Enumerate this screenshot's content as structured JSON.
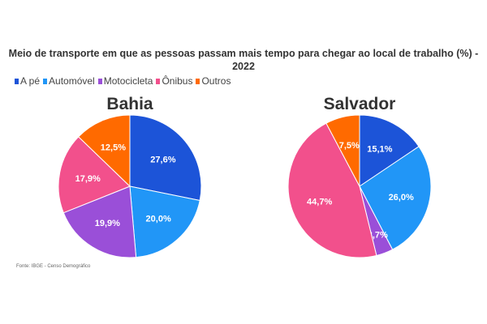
{
  "chart_data": {
    "type": "pie",
    "title": "Meio de transporte em que as pessoas passam mais tempo para chegar ao local de trabalho (%) - 2022",
    "legend_position": "top-left",
    "categories": [
      "A pé",
      "Automóvel",
      "Motocicleta",
      "Ônibus",
      "Outros"
    ],
    "colors": [
      "#1c54d8",
      "#2196f7",
      "#9a4fd8",
      "#f2508c",
      "#ff6a00"
    ],
    "pies": [
      {
        "name": "Bahia",
        "values": [
          27.6,
          20.0,
          19.9,
          17.9,
          12.5
        ],
        "labels": [
          "27,6%",
          "20,0%",
          "19,9%",
          "17,9%",
          "12,5%"
        ]
      },
      {
        "name": "Salvador",
        "values": [
          15.1,
          26.0,
          3.7,
          44.7,
          7.5
        ],
        "labels": [
          "15,1%",
          "26,0%",
          "3,7%",
          "44,7%",
          "7,5%"
        ]
      }
    ],
    "source": "Fonte: IBGE - Censo Demográfico"
  }
}
